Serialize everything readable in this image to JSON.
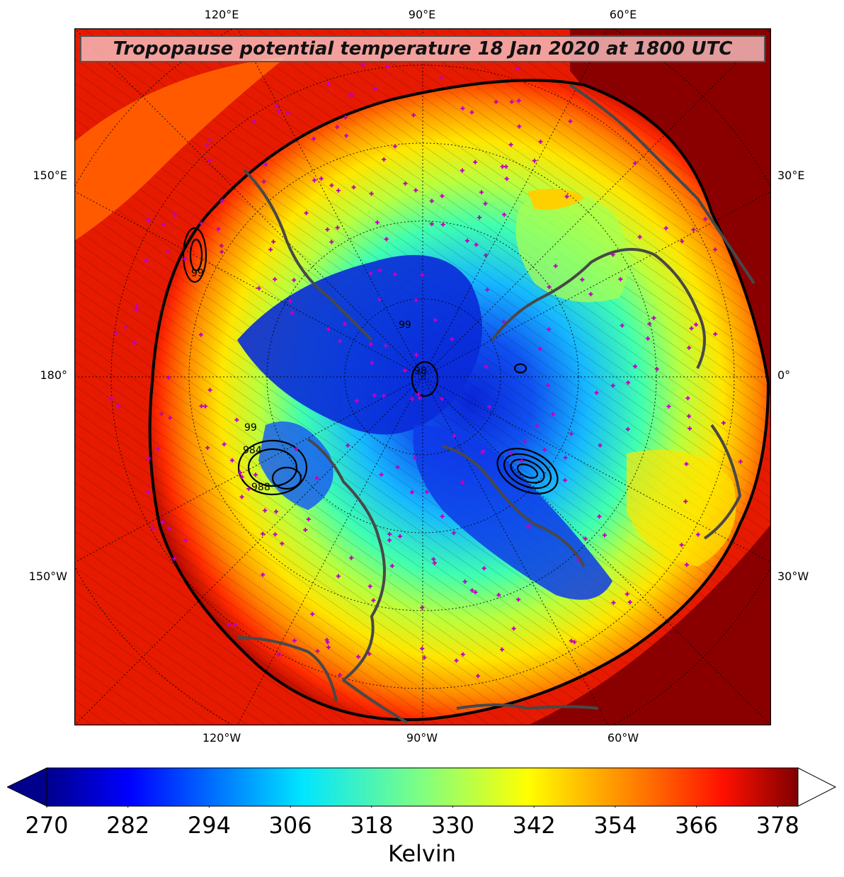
{
  "title": "Tropopause potential temperature 18 Jan 2020 at 1800 UTC",
  "top_lon_labels": [
    "120°E",
    "90°E",
    "60°E"
  ],
  "bottom_lon_labels": [
    "120°W",
    "90°W",
    "60°W"
  ],
  "left_labels": [
    "150°E",
    "180°",
    "150°W"
  ],
  "right_labels": [
    "30°E",
    "0°",
    "30°W"
  ],
  "colorbar": {
    "ticks": [
      "270",
      "282",
      "294",
      "306",
      "318",
      "330",
      "342",
      "354",
      "366",
      "378"
    ],
    "label": "Kelvin",
    "min": 270,
    "max": 381
  },
  "contour_labels": [
    "99",
    "98",
    "984",
    "988",
    "99",
    "99"
  ],
  "colors": {
    "extreme_high": "#800000",
    "high": "#ff2200",
    "mid": "#ffee00",
    "low": "#00e5ff",
    "extreme_low": "#00008c"
  }
}
